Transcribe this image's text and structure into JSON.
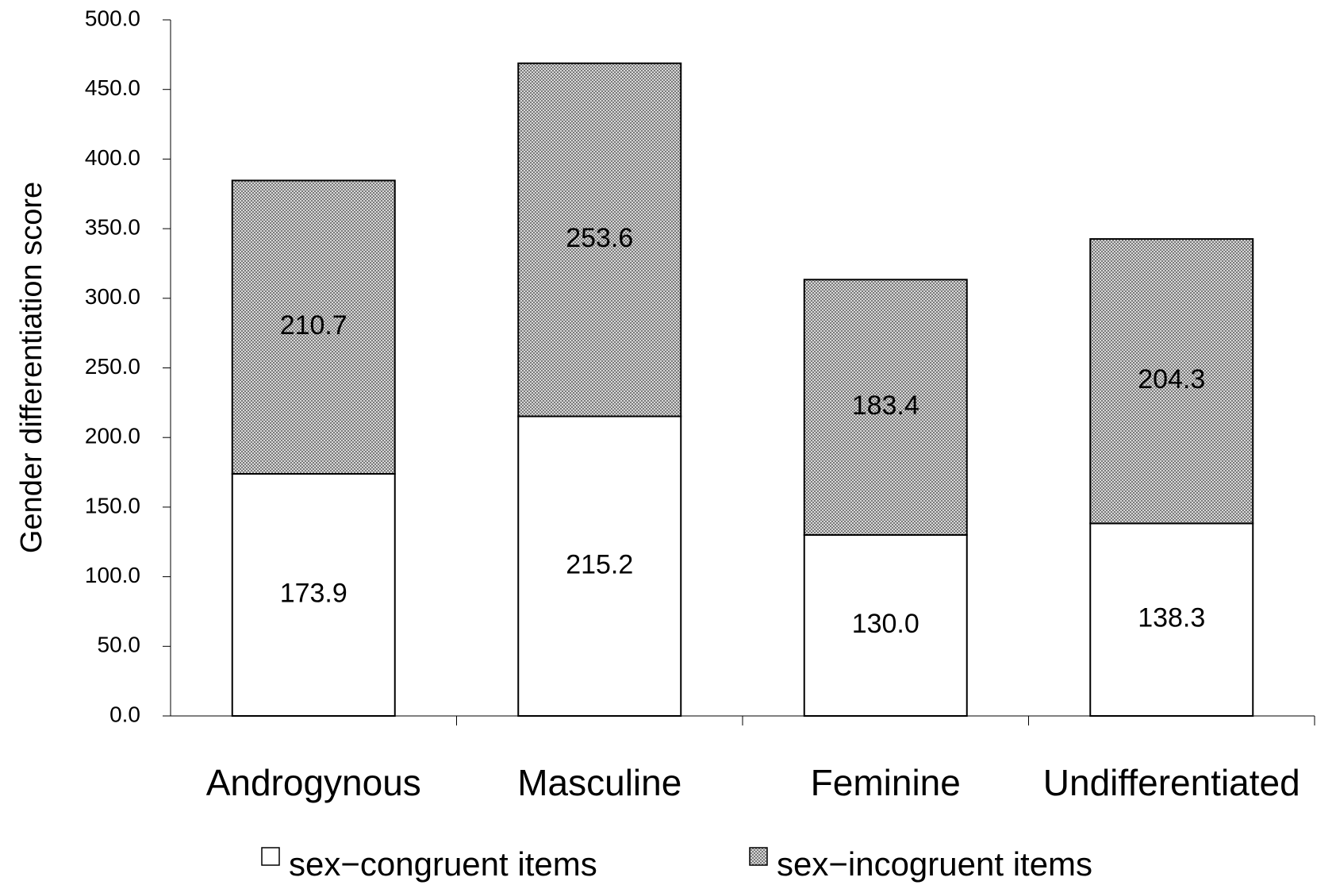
{
  "chart_data": {
    "type": "stacked_bar",
    "y_axis_label": "Gender differentiation score",
    "categories": [
      "Androgynous",
      "Masculine",
      "Feminine",
      "Undifferentiated"
    ],
    "series": [
      {
        "name": "sex−congruent items",
        "color": "#ffffff",
        "values": [
          173.9,
          215.2,
          130.0,
          138.3
        ],
        "value_labels": [
          "173.9",
          "215.2",
          "130.0",
          "138.3"
        ]
      },
      {
        "name": "sex−incogruent items",
        "color": "#a8a8a8",
        "values": [
          210.7,
          253.6,
          183.4,
          204.3
        ],
        "value_labels": [
          "210.7",
          "253.6",
          "183.4",
          "204.3"
        ]
      }
    ],
    "ylim": [
      0,
      500
    ],
    "yticks": [
      {
        "value": 0,
        "label": "0.0"
      },
      {
        "value": 50,
        "label": "50.0"
      },
      {
        "value": 100,
        "label": "100.0"
      },
      {
        "value": 150,
        "label": "150.0"
      },
      {
        "value": 200,
        "label": "200.0"
      },
      {
        "value": 250,
        "label": "250.0"
      },
      {
        "value": 300,
        "label": "300.0"
      },
      {
        "value": 350,
        "label": "350.0"
      },
      {
        "value": 400,
        "label": "400.0"
      },
      {
        "value": 450,
        "label": "450.0"
      },
      {
        "value": 500,
        "label": "500.0"
      }
    ],
    "grid": false
  }
}
